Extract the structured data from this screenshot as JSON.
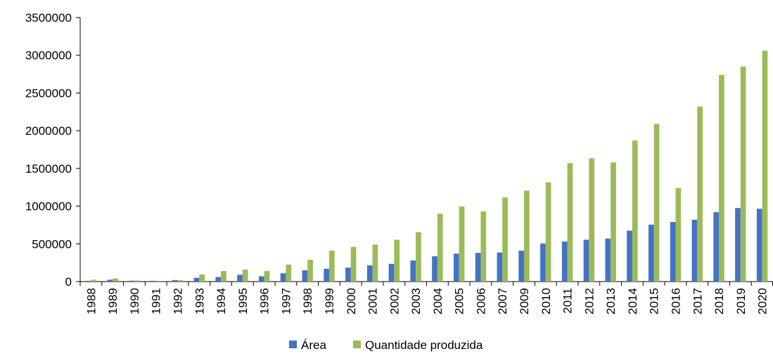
{
  "chart_data": {
    "type": "bar",
    "title": "",
    "xlabel": "",
    "ylabel": "",
    "ylim": [
      0,
      3500000
    ],
    "yticks": [
      0,
      500000,
      1000000,
      1500000,
      2000000,
      2500000,
      3000000,
      3500000
    ],
    "ytick_labels": [
      "0",
      "500000",
      "1000000",
      "1500000",
      "2000000",
      "2500000",
      "3000000",
      "3500000"
    ],
    "grid": false,
    "legend_position": "bottom",
    "categories": [
      "1988",
      "1989",
      "1990",
      "1991",
      "1992",
      "1993",
      "1994",
      "1995",
      "1996",
      "1997",
      "1998",
      "1999",
      "2000",
      "2001",
      "2002",
      "2003",
      "2004",
      "2005",
      "2006",
      "2007",
      "2009",
      "2010",
      "2011",
      "2012",
      "2013",
      "2014",
      "2015",
      "2016",
      "2017",
      "2018",
      "2019",
      "2020"
    ],
    "series": [
      {
        "name": "Área",
        "color": "#4472C4",
        "values": [
          10000,
          25000,
          12000,
          10000,
          20000,
          50000,
          60000,
          90000,
          70000,
          110000,
          150000,
          170000,
          185000,
          215000,
          235000,
          280000,
          335000,
          370000,
          380000,
          385000,
          410000,
          505000,
          530000,
          555000,
          570000,
          675000,
          755000,
          790000,
          820000,
          920000,
          975000,
          965000
        ]
      },
      {
        "name": "Quantidade produzida",
        "color": "#9BBB59",
        "values": [
          25000,
          40000,
          15000,
          10000,
          20000,
          95000,
          140000,
          160000,
          140000,
          225000,
          290000,
          410000,
          460000,
          490000,
          555000,
          655000,
          900000,
          995000,
          930000,
          1115000,
          1205000,
          1315000,
          1570000,
          1635000,
          1580000,
          1870000,
          2090000,
          1240000,
          2320000,
          2740000,
          2850000,
          3060000
        ]
      }
    ]
  }
}
